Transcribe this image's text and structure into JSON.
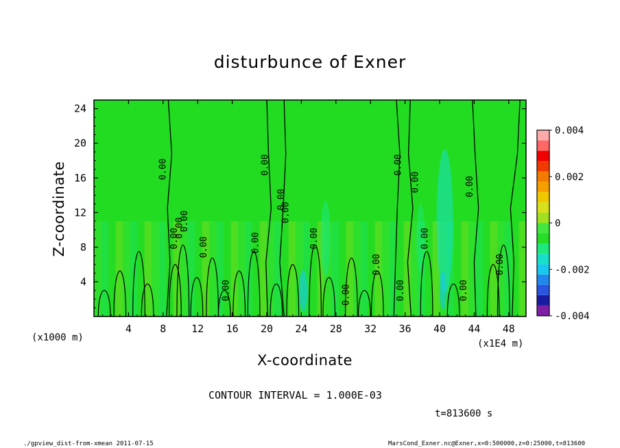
{
  "chart_data": {
    "type": "heatmap",
    "title": "disturbunce of Exner",
    "xlabel": "X-coordinate",
    "ylabel": "Z-coordinate",
    "x_unit_left": "(x1000 m)",
    "x_unit_right": "(x1E4 m)",
    "x_ticks": [
      "4",
      "8",
      "12",
      "16",
      "20",
      "24",
      "28",
      "32",
      "36",
      "40",
      "44",
      "48"
    ],
    "y_ticks": [
      "4",
      "8",
      "12",
      "16",
      "20",
      "24"
    ],
    "xlim": [
      0,
      50
    ],
    "ylim": [
      0,
      25
    ],
    "colorbar": {
      "ticks": [
        "0.004",
        "0.002",
        "0",
        "-0.002",
        "-0.004"
      ],
      "range": [
        -0.004,
        0.004
      ],
      "colors": [
        "#7e1fa6",
        "#1a1aa0",
        "#2a55e0",
        "#2288ee",
        "#18c8ee",
        "#18e0c8",
        "#1ee87c",
        "#26dc26",
        "#44e640",
        "#a0e01e",
        "#d8e01c",
        "#f0c800",
        "#f5a000",
        "#f57a00",
        "#f03a00",
        "#f00000",
        "#ff6666",
        "#ffaaaa"
      ]
    },
    "contour_label": "0.00",
    "contour_interval": "CONTOUR INTERVAL = 1.000E-03",
    "time": "t=813600 s"
  },
  "footer": {
    "left": "./gpview_dist-from-xmean  2011-07-15",
    "right": "MarsCond_Exner.nc@Exner,x=0:500000,z=0:25000,t=813600"
  }
}
